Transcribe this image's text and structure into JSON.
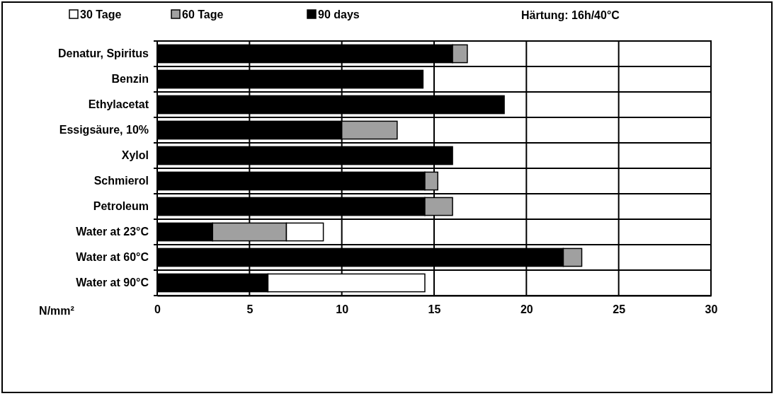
{
  "chart_data": {
    "type": "bar",
    "orientation": "horizontal",
    "stacked": true,
    "categories": [
      "Denatur, Spiritus",
      "Benzin",
      "Ethylacetat",
      "Essigsäure, 10%",
      "Xylol",
      "Schmierol",
      "Petroleum",
      "Water at 23°C",
      "Water at 60°C",
      "Water at 90°C"
    ],
    "series": [
      {
        "name": "90 days",
        "color": "#000000",
        "values": [
          16,
          14.4,
          18.8,
          10,
          16,
          14.5,
          14.5,
          3,
          22,
          6
        ]
      },
      {
        "name": "60 Tage",
        "color": "#a0a0a0",
        "values": [
          0.8,
          null,
          null,
          3,
          null,
          0.7,
          1.5,
          4,
          1,
          null
        ]
      },
      {
        "name": "30 Tage",
        "color": "#ffffff",
        "values": [
          null,
          null,
          null,
          null,
          null,
          null,
          null,
          2,
          null,
          8.5
        ]
      }
    ],
    "xlim": [
      0,
      30
    ],
    "xticks": [
      0,
      5,
      10,
      15,
      20,
      25,
      30
    ],
    "xlabel": "N/mm²",
    "grid": true,
    "legend": "top",
    "annotations": [
      "Härtung: 16h/40°C"
    ]
  }
}
